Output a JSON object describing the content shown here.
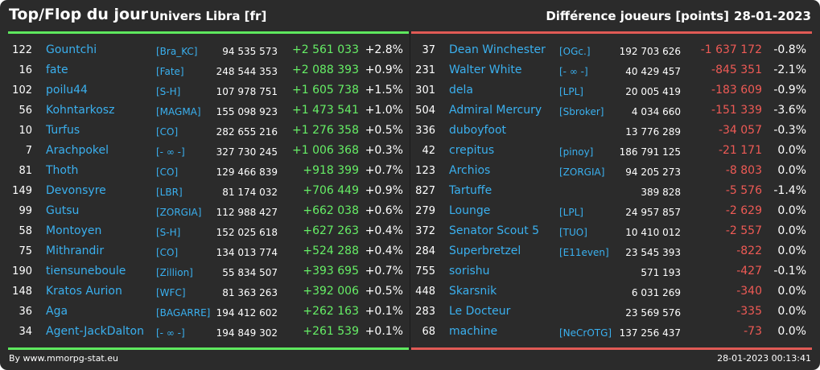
{
  "header": {
    "title": "Top/Flop du jour",
    "universe": "Univers Libra [fr]",
    "diff_label": "Différence joueurs [points]",
    "date": "28-01-2023"
  },
  "colors": {
    "background": "#2b2b2b",
    "top_accent": "#5ee85e",
    "flop_accent": "#e05a55",
    "positive_delta": "#66ee66",
    "negative_delta": "#ee5a55",
    "link": "#3ab0ef"
  },
  "top": [
    {
      "rank": "122",
      "name": "Gountchi",
      "alliance": "[Bra_KC]",
      "points": "94 535 573",
      "delta": "+2 561 033",
      "pct": "+2.8%"
    },
    {
      "rank": "16",
      "name": "fate",
      "alliance": "[Fate]",
      "points": "248 544 353",
      "delta": "+2 088 393",
      "pct": "+0.9%"
    },
    {
      "rank": "102",
      "name": "poilu44",
      "alliance": "[S-H]",
      "points": "107 978 751",
      "delta": "+1 605 738",
      "pct": "+1.5%"
    },
    {
      "rank": "56",
      "name": "Kohntarkosz",
      "alliance": "[MAGMA]",
      "points": "155 098 923",
      "delta": "+1 473 541",
      "pct": "+1.0%"
    },
    {
      "rank": "10",
      "name": "Turfus",
      "alliance": "[CO]",
      "points": "282 655 216",
      "delta": "+1 276 358",
      "pct": "+0.5%"
    },
    {
      "rank": "7",
      "name": "Arachpokel",
      "alliance": "[- ∞ -]",
      "points": "327 730 245",
      "delta": "+1 006 368",
      "pct": "+0.3%"
    },
    {
      "rank": "81",
      "name": "Thoth",
      "alliance": "[CO]",
      "points": "129 466 839",
      "delta": "+918 399",
      "pct": "+0.7%"
    },
    {
      "rank": "149",
      "name": "Devonsyre",
      "alliance": "[LBR]",
      "points": "81 174 032",
      "delta": "+706 449",
      "pct": "+0.9%"
    },
    {
      "rank": "99",
      "name": "Gutsu",
      "alliance": "[ZORGIA]",
      "points": "112 988 427",
      "delta": "+662 038",
      "pct": "+0.6%"
    },
    {
      "rank": "58",
      "name": "Montoyen",
      "alliance": "[S-H]",
      "points": "152 025 618",
      "delta": "+627 263",
      "pct": "+0.4%"
    },
    {
      "rank": "75",
      "name": "Mithrandir",
      "alliance": "[CO]",
      "points": "134 013 774",
      "delta": "+524 288",
      "pct": "+0.4%"
    },
    {
      "rank": "190",
      "name": "tiensuneboule",
      "alliance": "[Zillion]",
      "points": "55 834 507",
      "delta": "+393 695",
      "pct": "+0.7%"
    },
    {
      "rank": "148",
      "name": "Kratos Aurion",
      "alliance": "[WFC]",
      "points": "81 363 263",
      "delta": "+392 006",
      "pct": "+0.5%"
    },
    {
      "rank": "36",
      "name": "Aga",
      "alliance": "[BAGARRE]",
      "points": "194 412 602",
      "delta": "+262 163",
      "pct": "+0.1%"
    },
    {
      "rank": "34",
      "name": "Agent-JackDalton",
      "alliance": "[- ∞ -]",
      "points": "194 849 302",
      "delta": "+261 539",
      "pct": "+0.1%"
    }
  ],
  "flop": [
    {
      "rank": "37",
      "name": "Dean Winchester",
      "alliance": "[OGc.]",
      "points": "192 703 626",
      "delta": "-1 637 172",
      "pct": "-0.8%"
    },
    {
      "rank": "231",
      "name": "Walter White",
      "alliance": "[- ∞ -]",
      "points": "40 429 457",
      "delta": "-845 351",
      "pct": "-2.1%"
    },
    {
      "rank": "301",
      "name": "dela",
      "alliance": "[LPL]",
      "points": "20 005 419",
      "delta": "-183 609",
      "pct": "-0.9%"
    },
    {
      "rank": "504",
      "name": "Admiral Mercury",
      "alliance": "[Sbroker]",
      "points": "4 034 660",
      "delta": "-151 339",
      "pct": "-3.6%"
    },
    {
      "rank": "336",
      "name": "duboyfoot",
      "alliance": "",
      "points": "13 776 289",
      "delta": "-34 057",
      "pct": "-0.3%"
    },
    {
      "rank": "42",
      "name": "crepitus",
      "alliance": "[pinoy]",
      "points": "186 791 125",
      "delta": "-21 171",
      "pct": "0.0%"
    },
    {
      "rank": "123",
      "name": "Archios",
      "alliance": "[ZORGIA]",
      "points": "94 205 273",
      "delta": "-8 803",
      "pct": "0.0%"
    },
    {
      "rank": "827",
      "name": "Tartuffe",
      "alliance": "",
      "points": "389 828",
      "delta": "-5 576",
      "pct": "-1.4%"
    },
    {
      "rank": "279",
      "name": "Lounge",
      "alliance": "[LPL]",
      "points": "24 957 857",
      "delta": "-2 629",
      "pct": "0.0%"
    },
    {
      "rank": "372",
      "name": "Senator Scout 5",
      "alliance": "[TUO]",
      "points": "10 410 012",
      "delta": "-2 557",
      "pct": "0.0%"
    },
    {
      "rank": "284",
      "name": "Superbretzel",
      "alliance": "[E11even]",
      "points": "23 545 393",
      "delta": "-822",
      "pct": "0.0%"
    },
    {
      "rank": "755",
      "name": "sorishu",
      "alliance": "",
      "points": "571 193",
      "delta": "-427",
      "pct": "-0.1%"
    },
    {
      "rank": "448",
      "name": "Skarsnik",
      "alliance": "",
      "points": "6 031 269",
      "delta": "-340",
      "pct": "0.0%"
    },
    {
      "rank": "283",
      "name": "Le Docteur",
      "alliance": "",
      "points": "23 569 576",
      "delta": "-335",
      "pct": "0.0%"
    },
    {
      "rank": "68",
      "name": "machine",
      "alliance": "[NeCrOTG]",
      "points": "137 256 437",
      "delta": "-73",
      "pct": "0.0%"
    }
  ],
  "footer": {
    "site": "By www.mmorpg-stat.eu",
    "timestamp": "28-01-2023 00:13:41"
  }
}
